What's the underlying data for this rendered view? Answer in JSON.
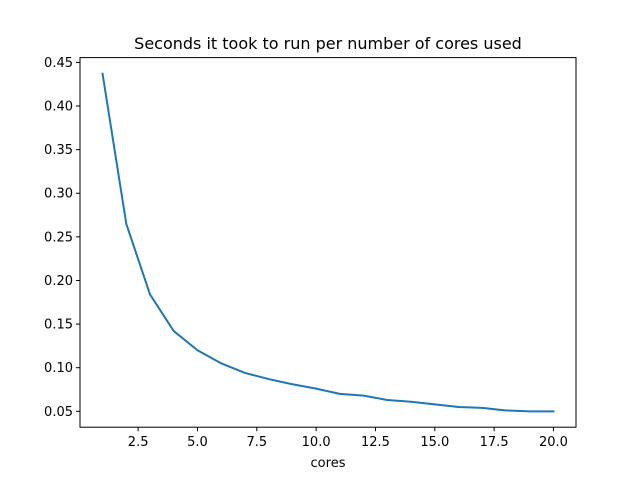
{
  "chart_data": {
    "type": "line",
    "title": "Seconds it took to run per number of cores used",
    "xlabel": "cores",
    "ylabel": "",
    "xlim": [
      0.05,
      20.95
    ],
    "ylim": [
      0.0318,
      0.4555
    ],
    "xticks": [
      2.5,
      5.0,
      7.5,
      10.0,
      12.5,
      15.0,
      17.5,
      20.0
    ],
    "xtick_labels": [
      "2.5",
      "5.0",
      "7.5",
      "10.0",
      "12.5",
      "15.0",
      "17.5",
      "20.0"
    ],
    "yticks": [
      0.05,
      0.1,
      0.15,
      0.2,
      0.25,
      0.3,
      0.35,
      0.4,
      0.45
    ],
    "ytick_labels": [
      "0.05",
      "0.10",
      "0.15",
      "0.20",
      "0.25",
      "0.30",
      "0.35",
      "0.40",
      "0.45"
    ],
    "grid": false,
    "series": [
      {
        "color": "#1f77b4",
        "x": [
          1,
          2,
          3,
          4,
          5,
          6,
          7,
          8,
          9,
          10,
          11,
          12,
          13,
          14,
          15,
          16,
          17,
          18,
          19,
          20
        ],
        "y": [
          0.437,
          0.265,
          0.184,
          0.142,
          0.12,
          0.105,
          0.094,
          0.087,
          0.081,
          0.076,
          0.07,
          0.068,
          0.063,
          0.061,
          0.058,
          0.055,
          0.054,
          0.051,
          0.05,
          0.05
        ]
      }
    ]
  }
}
